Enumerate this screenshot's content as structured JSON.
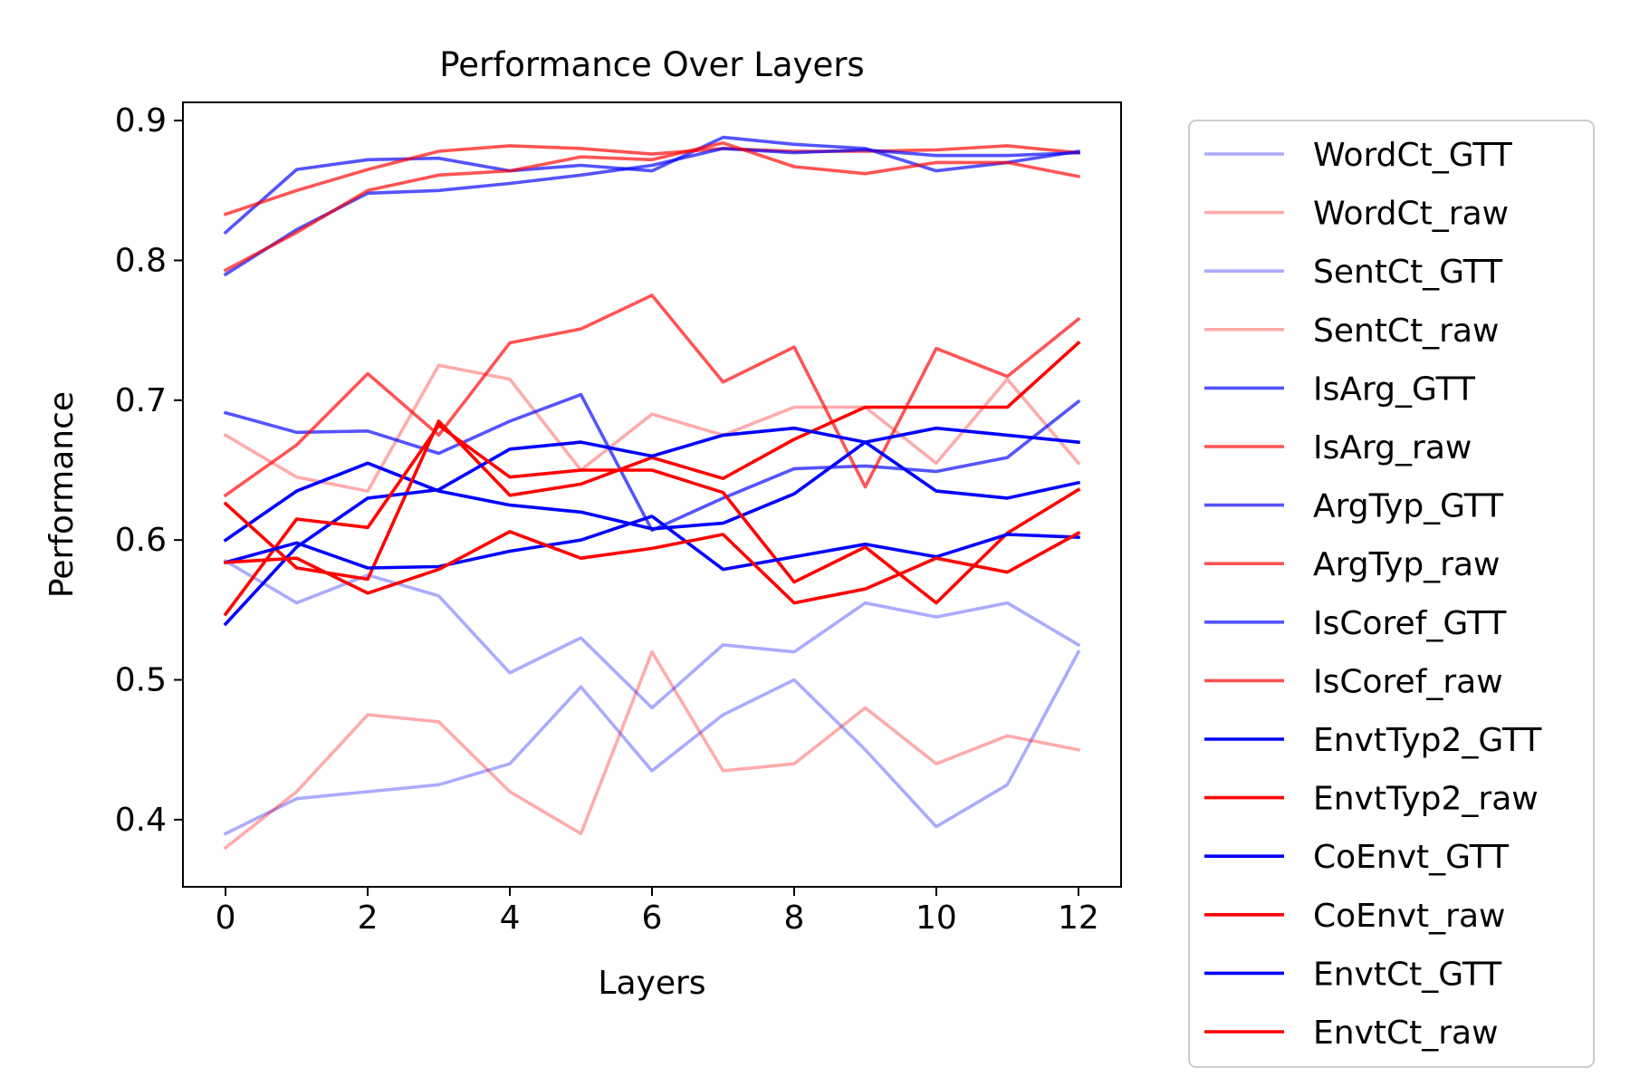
{
  "chart_data": {
    "type": "line",
    "title": "Performance Over Layers",
    "xlabel": "Layers",
    "ylabel": "Performance",
    "xlim": [
      -0.6,
      12.6
    ],
    "ylim": [
      0.352,
      0.913
    ],
    "xticks": [
      0,
      2,
      4,
      6,
      8,
      10,
      12
    ],
    "yticks": [
      0.4,
      0.5,
      0.6,
      0.7,
      0.8,
      0.9
    ],
    "ytick_labels": [
      "0.4",
      "0.5",
      "0.6",
      "0.7",
      "0.8",
      "0.9"
    ],
    "grid": false,
    "legend_position": "outside right",
    "x": [
      0,
      1,
      2,
      3,
      4,
      5,
      6,
      7,
      8,
      9,
      10,
      11,
      12
    ],
    "series": [
      {
        "name": "WordCt_GTT",
        "color": "#0000ff",
        "alpha": 0.33,
        "values": [
          0.39,
          0.415,
          0.42,
          0.425,
          0.44,
          0.495,
          0.435,
          0.475,
          0.5,
          0.45,
          0.395,
          0.425,
          0.52
        ]
      },
      {
        "name": "WordCt_raw",
        "color": "#ff0000",
        "alpha": 0.33,
        "values": [
          0.38,
          0.42,
          0.475,
          0.47,
          0.42,
          0.39,
          0.52,
          0.435,
          0.44,
          0.48,
          0.44,
          0.46,
          0.45
        ]
      },
      {
        "name": "SentCt_GTT",
        "color": "#0000ff",
        "alpha": 0.33,
        "values": [
          0.585,
          0.555,
          0.575,
          0.56,
          0.505,
          0.53,
          0.48,
          0.525,
          0.52,
          0.555,
          0.545,
          0.555,
          0.525
        ]
      },
      {
        "name": "SentCt_raw",
        "color": "#ff0000",
        "alpha": 0.33,
        "values": [
          0.675,
          0.645,
          0.635,
          0.725,
          0.715,
          0.65,
          0.69,
          0.675,
          0.695,
          0.695,
          0.655,
          0.715,
          0.655
        ]
      },
      {
        "name": "IsArg_GTT",
        "color": "#0000ff",
        "alpha": 0.67,
        "values": [
          0.82,
          0.865,
          0.872,
          0.873,
          0.864,
          0.868,
          0.864,
          0.888,
          0.883,
          0.88,
          0.864,
          0.87,
          0.878
        ]
      },
      {
        "name": "IsArg_raw",
        "color": "#ff0000",
        "alpha": 0.67,
        "values": [
          0.833,
          0.85,
          0.865,
          0.878,
          0.882,
          0.88,
          0.876,
          0.88,
          0.878,
          0.878,
          0.879,
          0.882,
          0.877
        ]
      },
      {
        "name": "ArgTyp_GTT",
        "color": "#0000ff",
        "alpha": 0.67,
        "values": [
          0.79,
          0.822,
          0.848,
          0.85,
          0.855,
          0.861,
          0.868,
          0.88,
          0.877,
          0.879,
          0.875,
          0.875,
          0.877
        ]
      },
      {
        "name": "ArgTyp_raw",
        "color": "#ff0000",
        "alpha": 0.67,
        "values": [
          0.793,
          0.82,
          0.85,
          0.861,
          0.864,
          0.874,
          0.872,
          0.884,
          0.867,
          0.862,
          0.87,
          0.87,
          0.86
        ]
      },
      {
        "name": "IsCoref_GTT",
        "color": "#0000ff",
        "alpha": 0.67,
        "values": [
          0.691,
          0.677,
          0.678,
          0.662,
          0.685,
          0.704,
          0.607,
          0.63,
          0.651,
          0.653,
          0.649,
          0.659,
          0.699
        ]
      },
      {
        "name": "IsCoref_raw",
        "color": "#ff0000",
        "alpha": 0.67,
        "values": [
          0.632,
          0.668,
          0.719,
          0.675,
          0.741,
          0.751,
          0.775,
          0.713,
          0.738,
          0.638,
          0.737,
          0.717,
          0.758
        ]
      },
      {
        "name": "EnvtTyp2_GTT",
        "color": "#0000ff",
        "alpha": 1.0,
        "values": [
          0.6,
          0.635,
          0.655,
          0.635,
          0.625,
          0.62,
          0.608,
          0.612,
          0.633,
          0.67,
          0.635,
          0.63,
          0.641
        ]
      },
      {
        "name": "EnvtTyp2_raw",
        "color": "#ff0000",
        "alpha": 1.0,
        "values": [
          0.626,
          0.58,
          0.572,
          0.685,
          0.632,
          0.64,
          0.659,
          0.644,
          0.672,
          0.695,
          0.695,
          0.695,
          0.741
        ]
      },
      {
        "name": "CoEnvt_GTT",
        "color": "#0000ff",
        "alpha": 1.0,
        "values": [
          0.54,
          0.595,
          0.63,
          0.636,
          0.665,
          0.67,
          0.66,
          0.675,
          0.68,
          0.67,
          0.68,
          0.675,
          0.67
        ]
      },
      {
        "name": "CoEnvt_raw",
        "color": "#ff0000",
        "alpha": 1.0,
        "values": [
          0.547,
          0.615,
          0.609,
          0.682,
          0.645,
          0.65,
          0.65,
          0.634,
          0.57,
          0.595,
          0.555,
          0.605,
          0.636
        ]
      },
      {
        "name": "EnvtCt_GTT",
        "color": "#0000ff",
        "alpha": 1.0,
        "values": [
          0.584,
          0.598,
          0.58,
          0.581,
          0.592,
          0.6,
          0.617,
          0.579,
          0.588,
          0.597,
          0.588,
          0.604,
          0.602
        ]
      },
      {
        "name": "EnvtCt_raw",
        "color": "#ff0000",
        "alpha": 1.0,
        "values": [
          0.584,
          0.587,
          0.562,
          0.579,
          0.606,
          0.587,
          0.594,
          0.604,
          0.555,
          0.565,
          0.587,
          0.577,
          0.605
        ]
      }
    ]
  }
}
